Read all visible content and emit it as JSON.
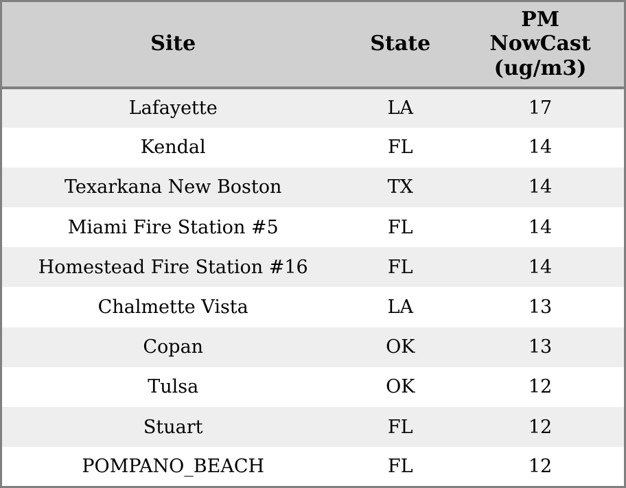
{
  "table": {
    "name": "PM NowCast readings by site",
    "columns": [
      {
        "key": "site",
        "label": "Site"
      },
      {
        "key": "state",
        "label": "State"
      },
      {
        "key": "pm",
        "label": "PM NowCast (ug/m3)"
      }
    ],
    "rows": [
      {
        "site": "Lafayette",
        "state": "LA",
        "pm": "17"
      },
      {
        "site": "Kendal",
        "state": "FL",
        "pm": "14"
      },
      {
        "site": "Texarkana New Boston",
        "state": "TX",
        "pm": "14"
      },
      {
        "site": "Miami Fire Station #5",
        "state": "FL",
        "pm": "14"
      },
      {
        "site": "Homestead Fire Station #16",
        "state": "FL",
        "pm": "14"
      },
      {
        "site": "Chalmette Vista",
        "state": "LA",
        "pm": "13"
      },
      {
        "site": "Copan",
        "state": "OK",
        "pm": "13"
      },
      {
        "site": "Tulsa",
        "state": "OK",
        "pm": "12"
      },
      {
        "site": "Stuart",
        "state": "FL",
        "pm": "12"
      },
      {
        "site": "POMPANO_BEACH",
        "state": "FL",
        "pm": "12"
      }
    ]
  },
  "chart_data": {
    "type": "table",
    "title": "",
    "columns": [
      "Site",
      "State",
      "PM NowCast (ug/m3)"
    ],
    "rows": [
      [
        "Lafayette",
        "LA",
        17
      ],
      [
        "Kendal",
        "FL",
        14
      ],
      [
        "Texarkana New Boston",
        "TX",
        14
      ],
      [
        "Miami Fire Station #5",
        "FL",
        14
      ],
      [
        "Homestead Fire Station #16",
        "FL",
        14
      ],
      [
        "Chalmette Vista",
        "LA",
        13
      ],
      [
        "Copan",
        "OK",
        13
      ],
      [
        "Tulsa",
        "OK",
        12
      ],
      [
        "Stuart",
        "FL",
        12
      ],
      [
        "POMPANO_BEACH",
        "FL",
        12
      ]
    ],
    "layout_hints": {
      "zebra_striping": true,
      "stripe_rows": "odd",
      "alignment": "center",
      "header_wrap_lines": [
        "PM",
        "NowCast",
        "(ug/m3)"
      ]
    }
  },
  "colors": {
    "header_bg": "#d0d0d0",
    "stripe_bg": "#eeeeee",
    "row_bg": "#ffffff",
    "border": "#808080",
    "text": "#000000"
  }
}
